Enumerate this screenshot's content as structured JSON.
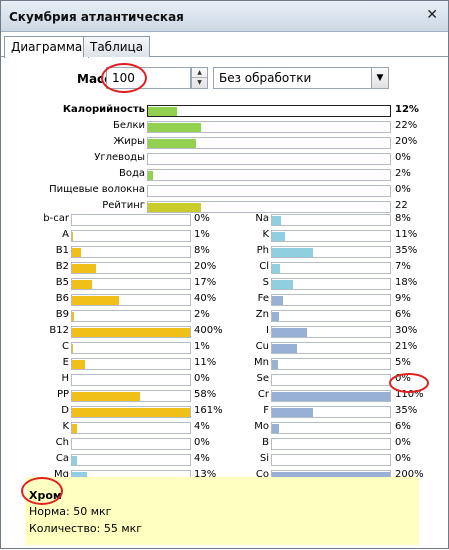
{
  "window": {
    "title": "Скумбрия атлантическая",
    "close_symbol": "✕"
  },
  "tabs": [
    {
      "label": "Диаграмма",
      "active": true
    },
    {
      "label": "Таблица",
      "active": false
    }
  ],
  "mass": {
    "label": "Масса",
    "value": "100"
  },
  "processing": {
    "selected": "Без обработки"
  },
  "colors": {
    "macro": "#92d050",
    "rating": "#c9cd2c",
    "vitamins": "#f0bf18",
    "minerals_light": "#90cfe0",
    "minerals_dark": "#98b0d3",
    "info_bg": "#ffffc0",
    "annotation": "#e02020"
  },
  "macros": [
    {
      "label": "Калорийность",
      "value": "12%",
      "fill": 0.12,
      "bold": true,
      "color": "#92d050"
    },
    {
      "label": "Белки",
      "value": "22%",
      "fill": 0.22,
      "color": "#92d050"
    },
    {
      "label": "Жиры",
      "value": "20%",
      "fill": 0.2,
      "color": "#92d050"
    },
    {
      "label": "Углеводы",
      "value": "0%",
      "fill": 0.0,
      "color": "#92d050"
    },
    {
      "label": "Вода",
      "value": "2%",
      "fill": 0.02,
      "color": "#92d050"
    },
    {
      "label": "Пищевые волокна",
      "value": "0%",
      "fill": 0.0,
      "color": "#92d050"
    },
    {
      "label": "Рейтинг",
      "value": "22",
      "fill": 0.22,
      "color": "#c9cd2c"
    }
  ],
  "vitamins": [
    {
      "label": "b-car",
      "value": "0%",
      "fill": 0.0
    },
    {
      "label": "A",
      "value": "1%",
      "fill": 0.01
    },
    {
      "label": "B1",
      "value": "8%",
      "fill": 0.08
    },
    {
      "label": "B2",
      "value": "20%",
      "fill": 0.2
    },
    {
      "label": "B5",
      "value": "17%",
      "fill": 0.17
    },
    {
      "label": "B6",
      "value": "40%",
      "fill": 0.4
    },
    {
      "label": "B9",
      "value": "2%",
      "fill": 0.02
    },
    {
      "label": "B12",
      "value": "400%",
      "fill": 1.0
    },
    {
      "label": "C",
      "value": "1%",
      "fill": 0.01
    },
    {
      "label": "E",
      "value": "11%",
      "fill": 0.11
    },
    {
      "label": "H",
      "value": "0%",
      "fill": 0.0
    },
    {
      "label": "PP",
      "value": "58%",
      "fill": 0.58
    },
    {
      "label": "D",
      "value": "161%",
      "fill": 1.0
    },
    {
      "label": "K",
      "value": "4%",
      "fill": 0.04
    },
    {
      "label": "Ch",
      "value": "0%",
      "fill": 0.0
    },
    {
      "label": "Ca",
      "value": "4%",
      "fill": 0.04,
      "color": "#90cfe0"
    },
    {
      "label": "Mg",
      "value": "13%",
      "fill": 0.13,
      "color": "#90cfe0"
    }
  ],
  "minerals": [
    {
      "label": "Na",
      "value": "8%",
      "fill": 0.08,
      "color": "#90cfe0"
    },
    {
      "label": "K",
      "value": "11%",
      "fill": 0.11,
      "color": "#90cfe0"
    },
    {
      "label": "Ph",
      "value": "35%",
      "fill": 0.35,
      "color": "#90cfe0"
    },
    {
      "label": "Cl",
      "value": "7%",
      "fill": 0.07,
      "color": "#90cfe0"
    },
    {
      "label": "S",
      "value": "18%",
      "fill": 0.18,
      "color": "#90cfe0"
    },
    {
      "label": "Fe",
      "value": "9%",
      "fill": 0.09,
      "color": "#98b0d3"
    },
    {
      "label": "Zn",
      "value": "6%",
      "fill": 0.06,
      "color": "#98b0d3"
    },
    {
      "label": "I",
      "value": "30%",
      "fill": 0.3,
      "color": "#98b0d3"
    },
    {
      "label": "Cu",
      "value": "21%",
      "fill": 0.21,
      "color": "#98b0d3"
    },
    {
      "label": "Mn",
      "value": "5%",
      "fill": 0.05,
      "color": "#98b0d3"
    },
    {
      "label": "Se",
      "value": "0%",
      "fill": 0.0,
      "color": "#98b0d3"
    },
    {
      "label": "Cr",
      "value": "110%",
      "fill": 1.0,
      "color": "#98b0d3"
    },
    {
      "label": "F",
      "value": "35%",
      "fill": 0.35,
      "color": "#98b0d3"
    },
    {
      "label": "Mo",
      "value": "6%",
      "fill": 0.06,
      "color": "#98b0d3"
    },
    {
      "label": "B",
      "value": "0%",
      "fill": 0.0,
      "color": "#98b0d3"
    },
    {
      "label": "Si",
      "value": "0%",
      "fill": 0.0,
      "color": "#98b0d3"
    },
    {
      "label": "Co",
      "value": "200%",
      "fill": 1.0,
      "color": "#98b0d3"
    }
  ],
  "info": {
    "title": "Хром",
    "norm": "Норма: 50 мкг",
    "amount": "Количество: 55 мкг"
  }
}
